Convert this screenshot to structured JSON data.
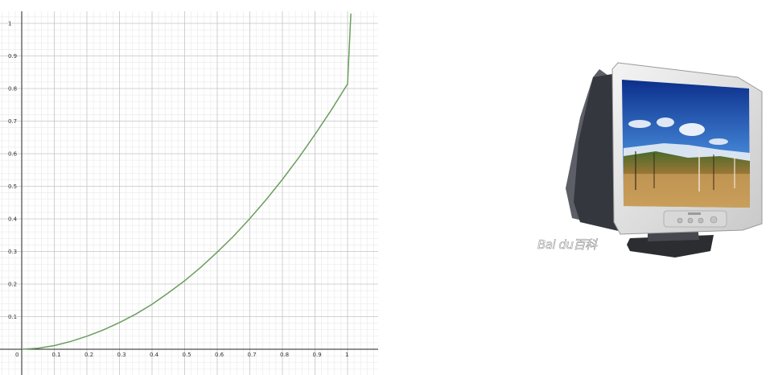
{
  "chart_data": {
    "type": "line",
    "title": "",
    "xlabel": "",
    "ylabel": "",
    "xlim": [
      0,
      1.1
    ],
    "ylim": [
      -0.08,
      1.04
    ],
    "grid": true,
    "x_ticks": [
      "0",
      "0.1",
      "0.2",
      "0.3",
      "0.4",
      "0.5",
      "0.6",
      "0.7",
      "0.8",
      "0.9",
      "1",
      "1"
    ],
    "y_ticks": [
      "0.1",
      "0.2",
      "0.3",
      "0.4",
      "0.5",
      "0.6",
      "0.7",
      "0.8",
      "0.9",
      "1"
    ],
    "series": [
      {
        "color": "#6a9e5e",
        "x": [
          0,
          0.05,
          0.1,
          0.15,
          0.2,
          0.25,
          0.3,
          0.35,
          0.4,
          0.45,
          0.5,
          0.55,
          0.6,
          0.65,
          0.7,
          0.75,
          0.8,
          0.85,
          0.9,
          0.95,
          1.0,
          1.01
        ],
        "y": [
          0,
          0.003,
          0.011,
          0.024,
          0.04,
          0.059,
          0.082,
          0.108,
          0.138,
          0.173,
          0.21,
          0.252,
          0.298,
          0.347,
          0.401,
          0.459,
          0.521,
          0.588,
          0.659,
          0.734,
          0.814,
          1.03
        ]
      }
    ]
  },
  "image": {
    "subject": "crt-monitor-photo",
    "watermark": "Bai du百科"
  }
}
